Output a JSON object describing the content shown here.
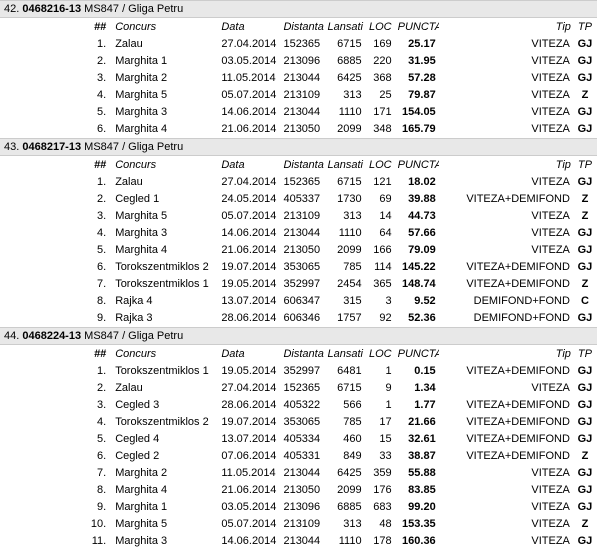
{
  "headers": {
    "num": "##",
    "concurs": "Concurs",
    "data": "Data",
    "distanta": "Distanta",
    "lansati": "Lansati",
    "loc": "LOC",
    "punctaj": "PUNCTAJ",
    "tip": "Tip",
    "tp": "TP"
  },
  "groups": [
    {
      "rank": "42.",
      "ring": "0468216-13",
      "member": "MS847 / Gliga Petru",
      "rows": [
        {
          "n": "1.",
          "concurs": "Zalau",
          "data": "27.04.2014",
          "dist": "152365",
          "lans": "6715",
          "loc": "169",
          "punc": "25.17",
          "tip": "VITEZA",
          "tp": "GJ"
        },
        {
          "n": "2.",
          "concurs": "Marghita 1",
          "data": "03.05.2014",
          "dist": "213096",
          "lans": "6885",
          "loc": "220",
          "punc": "31.95",
          "tip": "VITEZA",
          "tp": "GJ"
        },
        {
          "n": "3.",
          "concurs": "Marghita 2",
          "data": "11.05.2014",
          "dist": "213044",
          "lans": "6425",
          "loc": "368",
          "punc": "57.28",
          "tip": "VITEZA",
          "tp": "GJ"
        },
        {
          "n": "4.",
          "concurs": "Marghita 5",
          "data": "05.07.2014",
          "dist": "213109",
          "lans": "313",
          "loc": "25",
          "punc": "79.87",
          "tip": "VITEZA",
          "tp": "Z"
        },
        {
          "n": "5.",
          "concurs": "Marghita 3",
          "data": "14.06.2014",
          "dist": "213044",
          "lans": "1110",
          "loc": "171",
          "punc": "154.05",
          "tip": "VITEZA",
          "tp": "GJ"
        },
        {
          "n": "6.",
          "concurs": "Marghita 4",
          "data": "21.06.2014",
          "dist": "213050",
          "lans": "2099",
          "loc": "348",
          "punc": "165.79",
          "tip": "VITEZA",
          "tp": "GJ"
        }
      ]
    },
    {
      "rank": "43.",
      "ring": "0468217-13",
      "member": "MS847 / Gliga Petru",
      "rows": [
        {
          "n": "1.",
          "concurs": "Zalau",
          "data": "27.04.2014",
          "dist": "152365",
          "lans": "6715",
          "loc": "121",
          "punc": "18.02",
          "tip": "VITEZA",
          "tp": "GJ"
        },
        {
          "n": "2.",
          "concurs": "Cegled 1",
          "data": "24.05.2014",
          "dist": "405337",
          "lans": "1730",
          "loc": "69",
          "punc": "39.88",
          "tip": "VITEZA+DEMIFOND",
          "tp": "Z"
        },
        {
          "n": "3.",
          "concurs": "Marghita 5",
          "data": "05.07.2014",
          "dist": "213109",
          "lans": "313",
          "loc": "14",
          "punc": "44.73",
          "tip": "VITEZA",
          "tp": "Z"
        },
        {
          "n": "4.",
          "concurs": "Marghita 3",
          "data": "14.06.2014",
          "dist": "213044",
          "lans": "1110",
          "loc": "64",
          "punc": "57.66",
          "tip": "VITEZA",
          "tp": "GJ"
        },
        {
          "n": "5.",
          "concurs": "Marghita 4",
          "data": "21.06.2014",
          "dist": "213050",
          "lans": "2099",
          "loc": "166",
          "punc": "79.09",
          "tip": "VITEZA",
          "tp": "GJ"
        },
        {
          "n": "6.",
          "concurs": "Torokszentmiklos 2",
          "data": "19.07.2014",
          "dist": "353065",
          "lans": "785",
          "loc": "114",
          "punc": "145.22",
          "tip": "VITEZA+DEMIFOND",
          "tp": "GJ"
        },
        {
          "n": "7.",
          "concurs": "Torokszentmiklos 1",
          "data": "19.05.2014",
          "dist": "352997",
          "lans": "2454",
          "loc": "365",
          "punc": "148.74",
          "tip": "VITEZA+DEMIFOND",
          "tp": "Z"
        },
        {
          "n": "8.",
          "concurs": "Rajka 4",
          "data": "13.07.2014",
          "dist": "606347",
          "lans": "315",
          "loc": "3",
          "punc": "9.52",
          "tip": "DEMIFOND+FOND",
          "tp": "C"
        },
        {
          "n": "9.",
          "concurs": "Rajka 3",
          "data": "28.06.2014",
          "dist": "606346",
          "lans": "1757",
          "loc": "92",
          "punc": "52.36",
          "tip": "DEMIFOND+FOND",
          "tp": "GJ"
        }
      ]
    },
    {
      "rank": "44.",
      "ring": "0468224-13",
      "member": "MS847 / Gliga Petru",
      "rows": [
        {
          "n": "1.",
          "concurs": "Torokszentmiklos 1",
          "data": "19.05.2014",
          "dist": "352997",
          "lans": "6481",
          "loc": "1",
          "punc": "0.15",
          "tip": "VITEZA+DEMIFOND",
          "tp": "GJ"
        },
        {
          "n": "2.",
          "concurs": "Zalau",
          "data": "27.04.2014",
          "dist": "152365",
          "lans": "6715",
          "loc": "9",
          "punc": "1.34",
          "tip": "VITEZA",
          "tp": "GJ"
        },
        {
          "n": "3.",
          "concurs": "Cegled 3",
          "data": "28.06.2014",
          "dist": "405322",
          "lans": "566",
          "loc": "1",
          "punc": "1.77",
          "tip": "VITEZA+DEMIFOND",
          "tp": "GJ"
        },
        {
          "n": "4.",
          "concurs": "Torokszentmiklos 2",
          "data": "19.07.2014",
          "dist": "353065",
          "lans": "785",
          "loc": "17",
          "punc": "21.66",
          "tip": "VITEZA+DEMIFOND",
          "tp": "GJ"
        },
        {
          "n": "5.",
          "concurs": "Cegled 4",
          "data": "13.07.2014",
          "dist": "405334",
          "lans": "460",
          "loc": "15",
          "punc": "32.61",
          "tip": "VITEZA+DEMIFOND",
          "tp": "GJ"
        },
        {
          "n": "6.",
          "concurs": "Cegled 2",
          "data": "07.06.2014",
          "dist": "405331",
          "lans": "849",
          "loc": "33",
          "punc": "38.87",
          "tip": "VITEZA+DEMIFOND",
          "tp": "Z"
        },
        {
          "n": "7.",
          "concurs": "Marghita 2",
          "data": "11.05.2014",
          "dist": "213044",
          "lans": "6425",
          "loc": "359",
          "punc": "55.88",
          "tip": "VITEZA",
          "tp": "GJ"
        },
        {
          "n": "8.",
          "concurs": "Marghita 4",
          "data": "21.06.2014",
          "dist": "213050",
          "lans": "2099",
          "loc": "176",
          "punc": "83.85",
          "tip": "VITEZA",
          "tp": "GJ"
        },
        {
          "n": "9.",
          "concurs": "Marghita 1",
          "data": "03.05.2014",
          "dist": "213096",
          "lans": "6885",
          "loc": "683",
          "punc": "99.20",
          "tip": "VITEZA",
          "tp": "GJ"
        },
        {
          "n": "10.",
          "concurs": "Marghita 5",
          "data": "05.07.2014",
          "dist": "213109",
          "lans": "313",
          "loc": "48",
          "punc": "153.35",
          "tip": "VITEZA",
          "tp": "Z"
        },
        {
          "n": "11.",
          "concurs": "Marghita 3",
          "data": "14.06.2014",
          "dist": "213044",
          "lans": "1110",
          "loc": "178",
          "punc": "160.36",
          "tip": "VITEZA",
          "tp": "GJ"
        }
      ]
    }
  ]
}
